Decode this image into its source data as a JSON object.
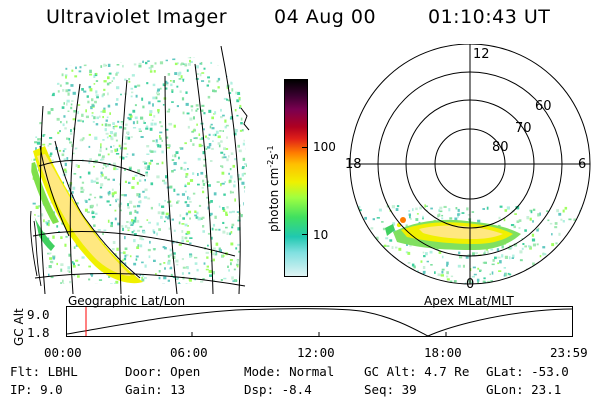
{
  "header": {
    "instrument": "Ultraviolet Imager",
    "date": "04 Aug 00",
    "time": "01:10:43 UT"
  },
  "left_panel": {
    "label": "Geographic Lat/Lon"
  },
  "right_panel": {
    "label": "Apex MLat/MLT",
    "mlt_labels": {
      "top": "12",
      "left": "18",
      "right": "6",
      "bottom": "0"
    },
    "lat_labels": [
      "60",
      "70",
      "80"
    ]
  },
  "colorbar": {
    "unit_label": "photon cm",
    "unit_sup1": "-2",
    "unit_mid": "s",
    "unit_sup2": "-1",
    "tick_100": "100",
    "tick_10": "10",
    "colors": [
      "#000000",
      "#3a0030",
      "#7a0050",
      "#b00020",
      "#e02018",
      "#ff7a00",
      "#ffc000",
      "#f0f000",
      "#a0ff40",
      "#40e060",
      "#20c8b0",
      "#80e0e0",
      "#e0f4f4"
    ]
  },
  "altitude_plot": {
    "ylabel": "GC Alt",
    "ytick_top": "9.0",
    "ytick_bottom": "1.8",
    "xticks": [
      "00:00",
      "06:00",
      "12:00",
      "18:00",
      "23:59"
    ],
    "current_time_marker_color": "#ff0000"
  },
  "info": {
    "filter": "Flt: LBHL",
    "ip": "IP:  9.0",
    "door": "Door: Open",
    "gain": "Gain: 13",
    "mode": "Mode: Normal",
    "dsp": "Dsp:   -8.4",
    "gc_alt": "GC Alt: 4.7 Re",
    "seq": "Seq: 39",
    "glat": "GLat: -53.0",
    "glon": "GLon:  23.1"
  }
}
